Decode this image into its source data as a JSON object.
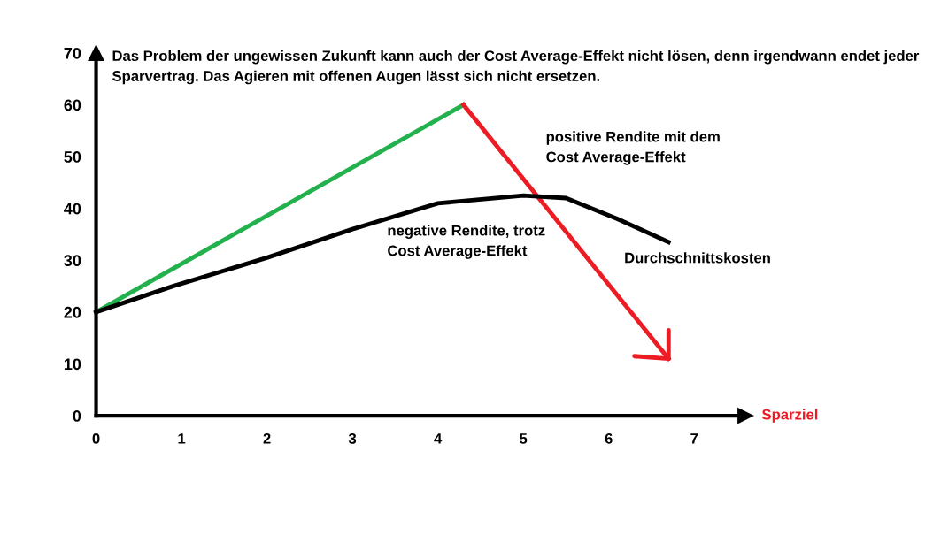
{
  "chart_data": {
    "type": "line",
    "xlabel": "Sparziel",
    "series": [
      {
        "color": "#22b14c",
        "x": [
          0,
          4.3
        ],
        "values": [
          20,
          60
        ]
      },
      {
        "color": "#ed1c24",
        "x": [
          4.3,
          6.7
        ],
        "values": [
          60,
          11
        ]
      },
      {
        "color": "#000000",
        "x": [
          0,
          0.9,
          2,
          3,
          4,
          5,
          5.5,
          6.1,
          6.7
        ],
        "values": [
          20,
          25,
          30.5,
          36,
          41,
          42.5,
          42,
          38,
          33.5
        ]
      }
    ],
    "xlim": [
      0,
      7.6
    ],
    "ylim": [
      0,
      70
    ],
    "xticks": [
      0,
      1,
      2,
      3,
      4,
      5,
      6,
      7
    ],
    "yticks": [
      0,
      10,
      20,
      30,
      40,
      50,
      60,
      70
    ],
    "grid": false,
    "legend": false,
    "marker": "none",
    "line_style": "solid",
    "annotations": [
      "Das Problem der ungewissen Zukunft kann auch der Cost Average-Effekt nicht lösen, denn irgendwann endet jeder Sparvertrag. Das Agieren mit offenen Augen lässt sich nicht ersetzen.",
      "positive Rendite mit dem\nCost Average-Effekt",
      "negative Rendite, trotz\nCost Average-Effekt",
      "Durchschnittskosten"
    ]
  }
}
